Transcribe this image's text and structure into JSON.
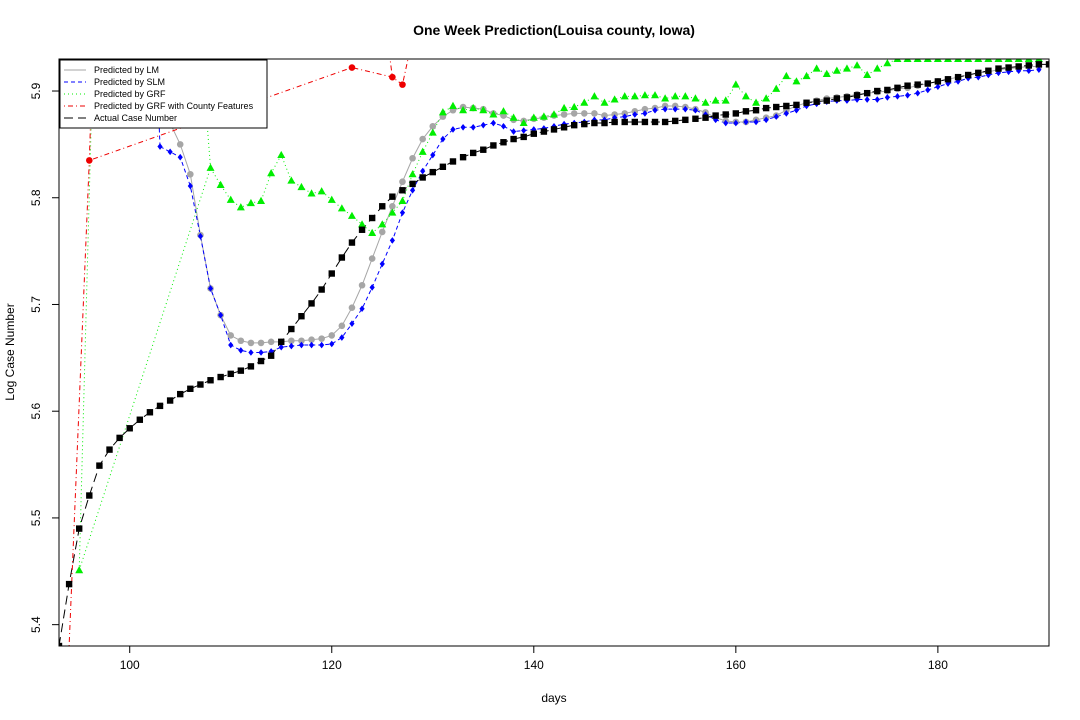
{
  "chart_data": {
    "type": "line",
    "title": "One Week Prediction(Louisa county, Iowa)",
    "xlabel": "days",
    "ylabel": "Log Case Number",
    "xlim": [
      93,
      191
    ],
    "ylim": [
      5.38,
      5.93
    ],
    "x_ticks": [
      100,
      120,
      140,
      160,
      180
    ],
    "y_ticks": [
      5.4,
      5.5,
      5.6,
      5.7,
      5.8,
      5.9
    ],
    "legend_position": "top-left",
    "grid": false,
    "series": [
      {
        "name": "Predicted by LM",
        "color": "#a6a6a6",
        "marker": "circle",
        "line": "solid",
        "x": [
          103,
          104,
          105,
          106,
          107,
          108,
          109,
          110,
          111,
          112,
          113,
          114,
          115,
          116,
          117,
          118,
          119,
          120,
          121,
          122,
          123,
          124,
          125,
          126,
          127,
          128,
          129,
          130,
          131,
          132,
          133,
          134,
          135,
          136,
          137,
          138,
          139,
          140,
          141,
          142,
          143,
          144,
          145,
          146,
          147,
          148,
          149,
          150,
          151,
          152,
          153,
          154,
          155,
          156,
          157,
          158,
          159,
          160,
          161,
          162,
          163,
          164,
          165,
          166,
          167,
          168,
          169,
          170,
          171,
          172,
          173,
          174,
          175,
          176,
          177,
          178,
          179,
          180,
          181,
          182,
          183,
          184,
          185,
          186,
          187,
          188,
          189,
          190
        ],
        "y": [
          5.905,
          5.87,
          5.85,
          5.822,
          5.765,
          5.715,
          5.69,
          5.671,
          5.666,
          5.664,
          5.664,
          5.665,
          5.665,
          5.666,
          5.666,
          5.667,
          5.668,
          5.671,
          5.68,
          5.697,
          5.718,
          5.743,
          5.768,
          5.792,
          5.815,
          5.837,
          5.855,
          5.867,
          5.876,
          5.882,
          5.885,
          5.884,
          5.883,
          5.879,
          5.877,
          5.873,
          5.872,
          5.874,
          5.875,
          5.877,
          5.878,
          5.879,
          5.879,
          5.879,
          5.877,
          5.878,
          5.879,
          5.881,
          5.883,
          5.884,
          5.886,
          5.886,
          5.885,
          5.883,
          5.88,
          5.875,
          5.872,
          5.871,
          5.871,
          5.873,
          5.875,
          5.877,
          5.882,
          5.886,
          5.889,
          5.891,
          5.893,
          5.894,
          5.895,
          5.897,
          5.898,
          5.899,
          5.9,
          5.902,
          5.903,
          5.905,
          5.907,
          5.909,
          5.911,
          5.913,
          5.915,
          5.917,
          5.918,
          5.92,
          5.921,
          5.922,
          5.923,
          5.923
        ]
      },
      {
        "name": "Predicted by SLM",
        "color": "#0000ff",
        "marker": "diamond",
        "line": "dashed",
        "x": [
          103,
          104,
          105,
          106,
          107,
          108,
          109,
          110,
          111,
          112,
          113,
          114,
          115,
          116,
          117,
          118,
          119,
          120,
          121,
          122,
          123,
          124,
          125,
          126,
          127,
          128,
          129,
          130,
          131,
          132,
          133,
          134,
          135,
          136,
          137,
          138,
          139,
          140,
          141,
          142,
          143,
          144,
          145,
          146,
          147,
          148,
          149,
          150,
          151,
          152,
          153,
          154,
          155,
          156,
          157,
          158,
          159,
          160,
          161,
          162,
          163,
          164,
          165,
          166,
          167,
          168,
          169,
          170,
          171,
          172,
          173,
          174,
          175,
          176,
          177,
          178,
          179,
          180,
          181,
          182,
          183,
          184,
          185,
          186,
          187,
          188,
          189,
          190
        ],
        "y": [
          5.848,
          5.843,
          5.838,
          5.811,
          5.764,
          5.715,
          5.69,
          5.662,
          5.657,
          5.655,
          5.655,
          5.656,
          5.66,
          5.661,
          5.662,
          5.662,
          5.662,
          5.663,
          5.669,
          5.682,
          5.696,
          5.716,
          5.738,
          5.76,
          5.786,
          5.807,
          5.825,
          5.84,
          5.855,
          5.864,
          5.866,
          5.866,
          5.868,
          5.87,
          5.867,
          5.862,
          5.863,
          5.864,
          5.865,
          5.867,
          5.869,
          5.87,
          5.871,
          5.873,
          5.873,
          5.875,
          5.876,
          5.878,
          5.879,
          5.882,
          5.883,
          5.883,
          5.883,
          5.882,
          5.878,
          5.873,
          5.87,
          5.87,
          5.871,
          5.871,
          5.873,
          5.876,
          5.879,
          5.882,
          5.886,
          5.888,
          5.89,
          5.891,
          5.891,
          5.892,
          5.892,
          5.892,
          5.894,
          5.895,
          5.896,
          5.898,
          5.901,
          5.904,
          5.907,
          5.909,
          5.912,
          5.913,
          5.915,
          5.917,
          5.918,
          5.919,
          5.919,
          5.92
        ]
      },
      {
        "name": "Predicted by GRF",
        "color": "#00ee00",
        "marker": "triangle",
        "line": "dotted",
        "x": [
          95,
          108,
          109,
          110,
          111,
          112,
          113,
          114,
          115,
          116,
          117,
          118,
          119,
          120,
          121,
          122,
          123,
          124,
          125,
          126,
          127,
          128,
          129,
          130,
          131,
          132,
          133,
          134,
          135,
          136,
          137,
          138,
          139,
          140,
          141,
          142,
          143,
          144,
          145,
          146,
          147,
          148,
          149,
          150,
          151,
          152,
          153,
          154,
          155,
          156,
          157,
          158,
          159,
          160,
          161,
          162,
          163,
          164,
          165,
          166,
          167,
          168,
          169,
          170,
          171,
          172,
          173,
          174,
          175,
          176,
          177,
          178,
          179,
          180,
          181,
          182,
          183,
          184,
          185,
          186,
          187,
          188,
          189,
          190
        ],
        "y": [
          5.451,
          5.828,
          5.812,
          5.798,
          5.791,
          5.795,
          5.797,
          5.823,
          5.84,
          5.816,
          5.81,
          5.804,
          5.806,
          5.798,
          5.79,
          5.783,
          5.775,
          5.767,
          5.775,
          5.786,
          5.797,
          5.822,
          5.843,
          5.861,
          5.88,
          5.886,
          5.882,
          5.884,
          5.882,
          5.878,
          5.881,
          5.875,
          5.87,
          5.875,
          5.876,
          5.878,
          5.884,
          5.885,
          5.889,
          5.895,
          5.889,
          5.892,
          5.895,
          5.895,
          5.896,
          5.896,
          5.893,
          5.895,
          5.895,
          5.893,
          5.889,
          5.891,
          5.891,
          5.906,
          5.895,
          5.889,
          5.893,
          5.902,
          5.914,
          5.909,
          5.914,
          5.921,
          5.916,
          5.919,
          5.921,
          5.924,
          5.915,
          5.921,
          5.926,
          5.93,
          5.93,
          5.93,
          5.93,
          5.93,
          5.93,
          5.93,
          5.93,
          5.93,
          5.93,
          5.93,
          5.93,
          5.93,
          5.93,
          5.93
        ]
      },
      {
        "name": "Predicted by GRF with County Features",
        "color": "#ee0000",
        "marker": "circle",
        "line": "dotdash",
        "x": [
          96,
          122,
          126,
          127
        ],
        "y": [
          5.835,
          5.922,
          5.913,
          5.906
        ]
      },
      {
        "name": "Actual Case Number",
        "color": "#000000",
        "marker": "square",
        "line": "longdash",
        "x": [
          93,
          94,
          95,
          96,
          97,
          98,
          99,
          100,
          101,
          102,
          103,
          104,
          105,
          106,
          107,
          108,
          109,
          110,
          111,
          112,
          113,
          114,
          115,
          116,
          117,
          118,
          119,
          120,
          121,
          122,
          123,
          124,
          125,
          126,
          127,
          128,
          129,
          130,
          131,
          132,
          133,
          134,
          135,
          136,
          137,
          138,
          139,
          140,
          141,
          142,
          143,
          144,
          145,
          146,
          147,
          148,
          149,
          150,
          151,
          152,
          153,
          154,
          155,
          156,
          157,
          158,
          159,
          160,
          161,
          162,
          163,
          164,
          165,
          166,
          167,
          168,
          169,
          170,
          171,
          172,
          173,
          174,
          175,
          176,
          177,
          178,
          179,
          180,
          181,
          182,
          183,
          184,
          185,
          186,
          187,
          188,
          189,
          190,
          191
        ],
        "y": [
          5.38,
          5.438,
          5.49,
          5.521,
          5.549,
          5.564,
          5.575,
          5.584,
          5.592,
          5.599,
          5.605,
          5.61,
          5.616,
          5.621,
          5.625,
          5.629,
          5.632,
          5.635,
          5.638,
          5.642,
          5.647,
          5.652,
          5.665,
          5.677,
          5.689,
          5.701,
          5.714,
          5.729,
          5.744,
          5.758,
          5.77,
          5.781,
          5.792,
          5.801,
          5.807,
          5.813,
          5.819,
          5.824,
          5.829,
          5.834,
          5.838,
          5.842,
          5.845,
          5.849,
          5.852,
          5.855,
          5.857,
          5.86,
          5.862,
          5.864,
          5.866,
          5.868,
          5.869,
          5.87,
          5.87,
          5.871,
          5.871,
          5.871,
          5.871,
          5.871,
          5.871,
          5.872,
          5.873,
          5.874,
          5.875,
          5.877,
          5.878,
          5.879,
          5.881,
          5.882,
          5.884,
          5.885,
          5.886,
          5.887,
          5.889,
          5.89,
          5.891,
          5.893,
          5.894,
          5.896,
          5.898,
          5.9,
          5.901,
          5.903,
          5.905,
          5.906,
          5.907,
          5.909,
          5.911,
          5.913,
          5.915,
          5.917,
          5.919,
          5.921,
          5.922,
          5.923,
          5.924,
          5.925,
          5.925
        ]
      }
    ],
    "extra_lines": [
      {
        "series": "Predicted by LM",
        "x": [
          103,
          102,
          101
        ],
        "y": [
          5.905,
          5.94,
          5.98
        ]
      },
      {
        "series": "Predicted by SLM",
        "x": [
          103,
          102.6
        ],
        "y": [
          5.848,
          5.94
        ]
      },
      {
        "series": "Predicted by GRF",
        "x": [
          95,
          96.5
        ],
        "y": [
          5.451,
          5.98
        ]
      },
      {
        "series": "Predicted by GRF",
        "x": [
          108,
          107
        ],
        "y": [
          5.828,
          5.95
        ]
      },
      {
        "series": "Predicted by GRF with County Features",
        "x": [
          94,
          96,
          96.5
        ],
        "y": [
          5.38,
          5.835,
          5.98
        ]
      },
      {
        "series": "Predicted by GRF with County Features",
        "x": [
          125.5,
          126
        ],
        "y": [
          5.95,
          5.913
        ]
      },
      {
        "series": "Predicted by GRF with County Features",
        "x": [
          127,
          128
        ],
        "y": [
          5.906,
          5.95
        ]
      }
    ]
  }
}
